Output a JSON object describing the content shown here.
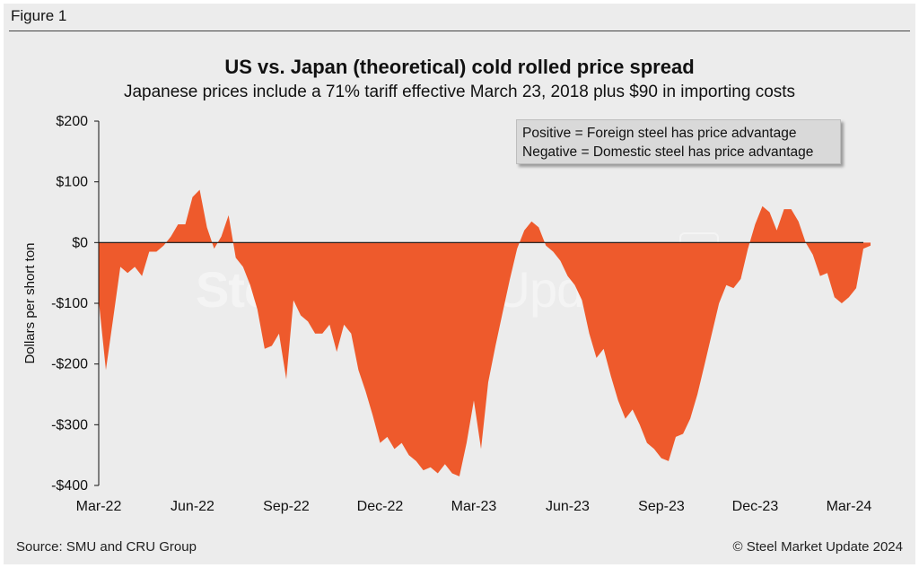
{
  "figure_label": "Figure 1",
  "source": "Source: SMU and CRU Group",
  "copyright": "© Steel Market Update 2024",
  "watermark": {
    "bold": "Steel Market",
    "light": " Update",
    "badge": "CRU"
  },
  "colors": {
    "fill": "#ee5a2c",
    "frame": "#ececec",
    "zero_line": "#111111"
  },
  "chart_data": {
    "type": "area",
    "title": "US vs. Japan (theoretical) cold rolled price spread",
    "subtitle": "Japanese prices include a 71% tariff effective March 23, 2018 plus $90 in importing costs",
    "xlabel": "",
    "ylabel": "Dollars per short ton",
    "ylim": [
      -400,
      200
    ],
    "yticks": [
      200,
      100,
      0,
      -100,
      -200,
      -300,
      -400
    ],
    "ytick_labels": [
      "$200",
      "$100",
      "$0",
      "-$100",
      "-$200",
      "-$300",
      "-$400"
    ],
    "xtick_labels": [
      "Mar-22",
      "Jun-22",
      "Sep-22",
      "Dec-22",
      "Mar-23",
      "Jun-23",
      "Sep-23",
      "Dec-23",
      "Mar-24"
    ],
    "xtick_weeks": [
      0,
      13,
      26,
      39,
      52,
      65,
      78,
      91,
      104
    ],
    "x_weeks": [
      0,
      1,
      2,
      3,
      4,
      5,
      6,
      7,
      8,
      9,
      10,
      11,
      12,
      13,
      14,
      15,
      16,
      17,
      18,
      19,
      20,
      21,
      22,
      23,
      24,
      25,
      26,
      27,
      28,
      29,
      30,
      31,
      32,
      33,
      34,
      35,
      36,
      37,
      38,
      39,
      40,
      41,
      42,
      43,
      44,
      45,
      46,
      47,
      48,
      49,
      50,
      51,
      52,
      53,
      54,
      55,
      56,
      57,
      58,
      59,
      60,
      61,
      62,
      63,
      64,
      65,
      66,
      67,
      68,
      69,
      70,
      71,
      72,
      73,
      74,
      75,
      76,
      77,
      78,
      79,
      80,
      81,
      82,
      83,
      84,
      85,
      86,
      87,
      88,
      89,
      90,
      91,
      92,
      93,
      94,
      95,
      96,
      97,
      98,
      99,
      100,
      101,
      102,
      103,
      104,
      105,
      106,
      107
    ],
    "values": [
      -95,
      -210,
      -125,
      -40,
      -50,
      -40,
      -55,
      -15,
      -15,
      -5,
      10,
      30,
      30,
      75,
      87,
      25,
      -10,
      10,
      45,
      -25,
      -40,
      -70,
      -110,
      -175,
      -170,
      -150,
      -225,
      -95,
      -120,
      -130,
      -150,
      -150,
      -135,
      -180,
      -135,
      -150,
      -210,
      -245,
      -285,
      -330,
      -320,
      -340,
      -330,
      -350,
      -360,
      -375,
      -370,
      -380,
      -365,
      -380,
      -385,
      -330,
      -260,
      -340,
      -230,
      -170,
      -115,
      -60,
      -10,
      20,
      35,
      25,
      -5,
      -15,
      -30,
      -55,
      -70,
      -95,
      -150,
      -190,
      -175,
      -220,
      -260,
      -290,
      -275,
      -300,
      -330,
      -340,
      -355,
      -360,
      -320,
      -315,
      -290,
      -250,
      -200,
      -150,
      -100,
      -70,
      -75,
      -60,
      -10,
      30,
      60,
      50,
      20,
      55,
      55,
      35,
      0,
      -20,
      -55,
      -50,
      -90,
      -100,
      -90,
      -75,
      -10,
      -5
    ],
    "series": [
      {
        "name": "US vs. Japan cold rolled price spread"
      }
    ]
  },
  "legend": {
    "line1": "Positive = Foreign steel has price advantage",
    "line2": "Negative = Domestic steel has price advantage"
  }
}
